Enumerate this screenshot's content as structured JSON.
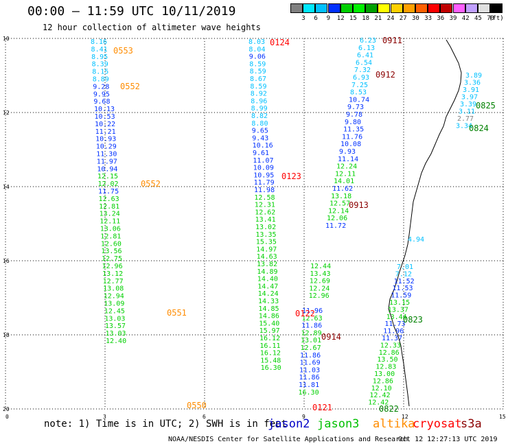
{
  "title": "00:00 – 11:59 UTC 10/11/2019",
  "subtitle": "12 hour collection of altimeter wave heights",
  "scale": {
    "unit": "(ft)",
    "ticks": [
      "3",
      "6",
      "9",
      "12",
      "15",
      "18",
      "21",
      "24",
      "27",
      "30",
      "33",
      "36",
      "39",
      "42",
      "45",
      "70"
    ],
    "colors": [
      "#808080",
      "#00e8ff",
      "#00c0ff",
      "#0030ff",
      "#00d000",
      "#00f000",
      "#00a000",
      "#ffff00",
      "#ffd000",
      "#ffa000",
      "#ff6000",
      "#ff0000",
      "#c00000",
      "#ff60ff",
      "#c0a0ff",
      "#e0e0e0",
      "#000000"
    ]
  },
  "colors": {
    "jason2": "#0000c8",
    "jason3": "#00c000",
    "altika": "#ff8c00",
    "cryosat": "#ff0000",
    "s3a": "#8b0000",
    "grid": "#000000"
  },
  "axes": {
    "y_labels": [
      "10",
      "12",
      "14",
      "16",
      "18",
      "20"
    ],
    "x_labels": [
      "0",
      "3",
      "6",
      "9",
      "12",
      "15"
    ]
  },
  "footer": {
    "note": "note: 1) Time is in UTC; 2) SWH is in feet",
    "credit": "NOAA/NESDIS Center for Satellite Applications and Research",
    "date": "Oct 12 12:27:13 UTC 2019"
  },
  "legend": [
    {
      "label": "jason2",
      "color": "#0000c8"
    },
    {
      "label": "jason3",
      "color": "#00c000"
    },
    {
      "label": "altika",
      "color": "#ff8c00"
    },
    {
      "label": "cryosat",
      "color": "#ff0000"
    },
    {
      "label": "s3a",
      "color": "#8b0000"
    }
  ],
  "time_labels": [
    {
      "text": "0553",
      "color": "#ff8c00"
    },
    {
      "text": "0552",
      "color": "#ff8c00"
    },
    {
      "text": "0552",
      "color": "#ff8c00"
    },
    {
      "text": "0551",
      "color": "#ff8c00"
    },
    {
      "text": "0550",
      "color": "#ff8c00"
    },
    {
      "text": "0124",
      "color": "#ff0000"
    },
    {
      "text": "0123",
      "color": "#ff0000"
    },
    {
      "text": "0122",
      "color": "#ff0000"
    },
    {
      "text": "0121",
      "color": "#ff0000"
    },
    {
      "text": "0911",
      "color": "#8b0000"
    },
    {
      "text": "0912",
      "color": "#8b0000"
    },
    {
      "text": "0913",
      "color": "#8b0000"
    },
    {
      "text": "0914",
      "color": "#8b0000"
    },
    {
      "text": "0825",
      "color": "#008000"
    },
    {
      "text": "0824",
      "color": "#008000"
    },
    {
      "text": "0823",
      "color": "#008000"
    },
    {
      "text": "0822",
      "color": "#008000"
    }
  ],
  "tracks": {
    "track_a": [
      [
        "8.16",
        "#00c0ff"
      ],
      [
        "8.41",
        "#00c0ff"
      ],
      [
        "8.95",
        "#00c0ff"
      ],
      [
        "8.39",
        "#00c0ff"
      ],
      [
        "8.15",
        "#00c0ff"
      ],
      [
        "8.89",
        "#00c0ff"
      ],
      [
        "9.28",
        "#0030ff"
      ],
      [
        "9.95",
        "#0030ff"
      ],
      [
        "9.68",
        "#0030ff"
      ],
      [
        "10.13",
        "#0030ff"
      ],
      [
        "10.53",
        "#0030ff"
      ],
      [
        "10.22",
        "#0030ff"
      ],
      [
        "11.21",
        "#0030ff"
      ],
      [
        "10.93",
        "#0030ff"
      ],
      [
        "10.29",
        "#0030ff"
      ],
      [
        "11.30",
        "#0030ff"
      ],
      [
        "11.97",
        "#0030ff"
      ],
      [
        "10.94",
        "#0030ff"
      ],
      [
        "12.15",
        "#00d000"
      ],
      [
        "12.02",
        "#00d000"
      ],
      [
        "11.75",
        "#0030ff"
      ],
      [
        "12.63",
        "#00d000"
      ],
      [
        "12.81",
        "#00d000"
      ],
      [
        "13.24",
        "#00d000"
      ],
      [
        "12.11",
        "#00d000"
      ],
      [
        "13.06",
        "#00d000"
      ],
      [
        "12.81",
        "#00d000"
      ],
      [
        "12.60",
        "#00d000"
      ],
      [
        "13.56",
        "#00d000"
      ],
      [
        "12.75",
        "#00d000"
      ],
      [
        "12.96",
        "#00d000"
      ],
      [
        "13.12",
        "#00d000"
      ],
      [
        "12.77",
        "#00d000"
      ],
      [
        "13.08",
        "#00d000"
      ],
      [
        "12.94",
        "#00d000"
      ],
      [
        "13.09",
        "#00d000"
      ],
      [
        "12.45",
        "#00d000"
      ],
      [
        "13.03",
        "#00d000"
      ],
      [
        "13.57",
        "#00d000"
      ],
      [
        "13.03",
        "#00d000"
      ],
      [
        "12.40",
        "#00d000"
      ]
    ],
    "track_b": [
      [
        "8.03",
        "#00c0ff"
      ],
      [
        "8.04",
        "#00c0ff"
      ],
      [
        "9.06",
        "#0030ff"
      ],
      [
        "8.59",
        "#00c0ff"
      ],
      [
        "8.59",
        "#00c0ff"
      ],
      [
        "8.67",
        "#00c0ff"
      ],
      [
        "8.59",
        "#00c0ff"
      ],
      [
        "8.92",
        "#00c0ff"
      ],
      [
        "8.96",
        "#00c0ff"
      ],
      [
        "8.99",
        "#00c0ff"
      ],
      [
        "8.82",
        "#00c0ff"
      ],
      [
        "8.80",
        "#00c0ff"
      ],
      [
        "9.65",
        "#0030ff"
      ],
      [
        "9.43",
        "#0030ff"
      ],
      [
        "10.16",
        "#0030ff"
      ],
      [
        "9.61",
        "#0030ff"
      ],
      [
        "11.07",
        "#0030ff"
      ],
      [
        "10.09",
        "#0030ff"
      ],
      [
        "10.95",
        "#0030ff"
      ],
      [
        "11.79",
        "#0030ff"
      ],
      [
        "11.98",
        "#0030ff"
      ],
      [
        "12.58",
        "#00d000"
      ],
      [
        "12.31",
        "#00d000"
      ],
      [
        "12.62",
        "#00d000"
      ],
      [
        "13.41",
        "#00d000"
      ],
      [
        "13.02",
        "#00d000"
      ],
      [
        "13.35",
        "#00d000"
      ],
      [
        "15.35",
        "#00d000"
      ],
      [
        "14.97",
        "#00d000"
      ],
      [
        "14.63",
        "#00d000"
      ],
      [
        "13.82",
        "#00d000"
      ],
      [
        "14.89",
        "#00d000"
      ],
      [
        "14.40",
        "#00d000"
      ],
      [
        "14.47",
        "#00d000"
      ],
      [
        "14.24",
        "#00d000"
      ],
      [
        "14.33",
        "#00d000"
      ],
      [
        "14.85",
        "#00d000"
      ],
      [
        "14.86",
        "#00d000"
      ],
      [
        "15.40",
        "#00d000"
      ],
      [
        "15.97",
        "#00d000"
      ],
      [
        "16.12",
        "#00d000"
      ],
      [
        "16.11",
        "#00d000"
      ],
      [
        "16.12",
        "#00d000"
      ],
      [
        "15.48",
        "#00d000"
      ],
      [
        "16.30",
        "#00d000"
      ]
    ],
    "track_c": [
      [
        "11.96",
        "#0030ff"
      ],
      [
        "12.63",
        "#00d000"
      ],
      [
        "11.86",
        "#0030ff"
      ],
      [
        "12.89",
        "#00d000"
      ],
      [
        "13.01",
        "#00d000"
      ],
      [
        "12.67",
        "#00d000"
      ],
      [
        "11.86",
        "#0030ff"
      ],
      [
        "11.69",
        "#0030ff"
      ],
      [
        "11.03",
        "#0030ff"
      ],
      [
        "11.86",
        "#0030ff"
      ],
      [
        "11.81",
        "#0030ff"
      ],
      [
        "16.30",
        "#00d000"
      ]
    ],
    "track_d": [
      [
        "6.23",
        "#00c0ff"
      ],
      [
        "6.13",
        "#00c0ff"
      ],
      [
        "6.41",
        "#00c0ff"
      ],
      [
        "6.54",
        "#00c0ff"
      ],
      [
        "7.32",
        "#00c0ff"
      ],
      [
        "6.93",
        "#00c0ff"
      ],
      [
        "7.25",
        "#00c0ff"
      ],
      [
        "8.53",
        "#00c0ff"
      ],
      [
        "10.74",
        "#0030ff"
      ],
      [
        "9.73",
        "#0030ff"
      ],
      [
        "9.78",
        "#0030ff"
      ],
      [
        "9.80",
        "#0030ff"
      ],
      [
        "11.35",
        "#0030ff"
      ],
      [
        "11.76",
        "#0030ff"
      ],
      [
        "10.08",
        "#0030ff"
      ],
      [
        "9.93",
        "#0030ff"
      ],
      [
        "11.14",
        "#0030ff"
      ],
      [
        "12.24",
        "#00d000"
      ],
      [
        "12.11",
        "#00d000"
      ],
      [
        "14.01",
        "#00d000"
      ],
      [
        "11.62",
        "#0030ff"
      ],
      [
        "13.18",
        "#00d000"
      ],
      [
        "12.57",
        "#00d000"
      ],
      [
        "12.14",
        "#00d000"
      ],
      [
        "12.06",
        "#00d000"
      ],
      [
        "11.72",
        "#0030ff"
      ]
    ],
    "track_e": [
      [
        "12.44",
        "#00d000"
      ],
      [
        "13.43",
        "#00d000"
      ],
      [
        "12.69",
        "#00d000"
      ],
      [
        "12.24",
        "#00d000"
      ],
      [
        "12.96",
        "#00d000"
      ]
    ],
    "track_f": [
      [
        "7.01",
        "#00c0ff"
      ],
      [
        "7.12",
        "#00c0ff"
      ],
      [
        "11.52",
        "#0030ff"
      ],
      [
        "11.53",
        "#0030ff"
      ],
      [
        "11.59",
        "#0030ff"
      ],
      [
        "13.15",
        "#00d000"
      ],
      [
        "13.37",
        "#00d000"
      ],
      [
        "13.44",
        "#00d000"
      ],
      [
        "11.73",
        "#0030ff"
      ],
      [
        "11.96",
        "#0030ff"
      ],
      [
        "11.37",
        "#0030ff"
      ],
      [
        "12.33",
        "#00d000"
      ],
      [
        "12.86",
        "#00d000"
      ],
      [
        "13.50",
        "#00d000"
      ],
      [
        "12.83",
        "#00d000"
      ],
      [
        "13.00",
        "#00d000"
      ],
      [
        "12.86",
        "#00d000"
      ],
      [
        "12.10",
        "#00d000"
      ],
      [
        "12.42",
        "#00d000"
      ],
      [
        "12.42",
        "#00d000"
      ]
    ],
    "track_g": [
      [
        "3.89",
        "#00c0ff"
      ],
      [
        "3.36",
        "#00c0ff"
      ],
      [
        "3.91",
        "#00c0ff"
      ],
      [
        "3.97",
        "#00c0ff"
      ],
      [
        "3.39",
        "#00c0ff"
      ],
      [
        "3.11",
        "#00c0ff"
      ],
      [
        "2.77",
        "#808080"
      ],
      [
        "3.34",
        "#00c0ff"
      ]
    ],
    "track_h": [
      [
        "4.94",
        "#00c0ff"
      ]
    ]
  }
}
